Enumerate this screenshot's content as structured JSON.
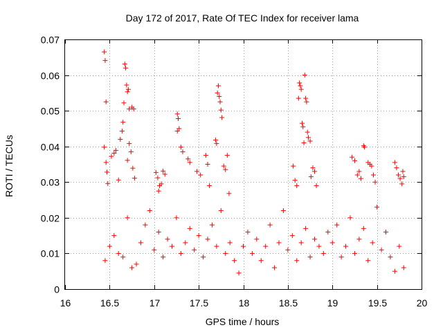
{
  "chart_data": {
    "type": "scatter",
    "title": "Day 172 of 2017, Rate Of TEC Index for receiver lama",
    "xlabel": "GPS time / hours",
    "ylabel": "ROTI / TECUs",
    "xlim": [
      16,
      20
    ],
    "ylim": [
      0,
      0.07
    ],
    "xticks": [
      "16",
      "16.5",
      "17",
      "17.5",
      "18",
      "18.5",
      "19",
      "19.5",
      "20"
    ],
    "yticks": [
      "0",
      "0.01",
      "0.02",
      "0.03",
      "0.04",
      "0.05",
      "0.06",
      "0.07"
    ],
    "grid": true,
    "marker": "+",
    "color": "#ff0000",
    "series": [
      {
        "name": "ROTI",
        "points": [
          [
            16.44,
            0.0665
          ],
          [
            16.45,
            0.0641
          ],
          [
            16.46,
            0.0525
          ],
          [
            16.44,
            0.0398
          ],
          [
            16.46,
            0.0355
          ],
          [
            16.47,
            0.0328
          ],
          [
            16.48,
            0.0296
          ],
          [
            16.52,
            0.0372
          ],
          [
            16.55,
            0.0381
          ],
          [
            16.57,
            0.0389
          ],
          [
            16.6,
            0.0306
          ],
          [
            16.62,
            0.042
          ],
          [
            16.64,
            0.0443
          ],
          [
            16.65,
            0.0468
          ],
          [
            16.67,
            0.0631
          ],
          [
            16.68,
            0.062
          ],
          [
            16.69,
            0.0572
          ],
          [
            16.7,
            0.0553
          ],
          [
            16.71,
            0.056
          ],
          [
            16.66,
            0.0522
          ],
          [
            16.72,
            0.0505
          ],
          [
            16.75,
            0.051
          ],
          [
            16.77,
            0.0505
          ],
          [
            16.72,
            0.0408
          ],
          [
            16.74,
            0.0385
          ],
          [
            16.7,
            0.0361
          ],
          [
            16.76,
            0.0339
          ],
          [
            16.78,
            0.0311
          ],
          [
            17.02,
            0.0327
          ],
          [
            17.04,
            0.0312
          ],
          [
            17.06,
            0.029
          ],
          [
            17.08,
            0.0295
          ],
          [
            17.1,
            0.0331
          ],
          [
            17.12,
            0.0322
          ],
          [
            17.05,
            0.0275
          ],
          [
            17.26,
            0.0491
          ],
          [
            17.27,
            0.0478
          ],
          [
            17.28,
            0.045
          ],
          [
            17.26,
            0.0443
          ],
          [
            17.3,
            0.0398
          ],
          [
            17.32,
            0.0385
          ],
          [
            17.38,
            0.0365
          ],
          [
            17.4,
            0.0355
          ],
          [
            17.48,
            0.033
          ],
          [
            17.52,
            0.032
          ],
          [
            17.58,
            0.0375
          ],
          [
            17.6,
            0.035
          ],
          [
            17.62,
            0.029
          ],
          [
            17.69,
            0.0418
          ],
          [
            17.7,
            0.0408
          ],
          [
            17.71,
            0.055
          ],
          [
            17.72,
            0.057
          ],
          [
            17.73,
            0.054
          ],
          [
            17.74,
            0.0525
          ],
          [
            17.75,
            0.0502
          ],
          [
            17.76,
            0.0481
          ],
          [
            17.78,
            0.0345
          ],
          [
            17.8,
            0.0335
          ],
          [
            17.82,
            0.0375
          ],
          [
            17.84,
            0.0268
          ],
          [
            18.56,
            0.0345
          ],
          [
            18.58,
            0.0305
          ],
          [
            18.62,
            0.0535
          ],
          [
            18.63,
            0.0578
          ],
          [
            18.64,
            0.057
          ],
          [
            18.65,
            0.056
          ],
          [
            18.66,
            0.0465
          ],
          [
            18.67,
            0.0455
          ],
          [
            18.68,
            0.041
          ],
          [
            18.69,
            0.06
          ],
          [
            18.7,
            0.0535
          ],
          [
            18.71,
            0.0525
          ],
          [
            18.72,
            0.044
          ],
          [
            18.73,
            0.0425
          ],
          [
            18.75,
            0.0415
          ],
          [
            18.78,
            0.034
          ],
          [
            18.8,
            0.033
          ],
          [
            18.82,
            0.029
          ],
          [
            18.76,
            0.0315
          ],
          [
            18.6,
            0.029
          ],
          [
            19.22,
            0.037
          ],
          [
            19.25,
            0.036
          ],
          [
            19.28,
            0.032
          ],
          [
            19.3,
            0.033
          ],
          [
            19.32,
            0.031
          ],
          [
            19.35,
            0.0402
          ],
          [
            19.36,
            0.0398
          ],
          [
            19.4,
            0.0355
          ],
          [
            19.42,
            0.035
          ],
          [
            19.44,
            0.0345
          ],
          [
            19.46,
            0.032
          ],
          [
            19.48,
            0.03
          ],
          [
            19.7,
            0.0355
          ],
          [
            19.72,
            0.034
          ],
          [
            19.74,
            0.032
          ],
          [
            19.76,
            0.031
          ],
          [
            19.78,
            0.0295
          ],
          [
            19.79,
            0.033
          ],
          [
            19.8,
            0.0315
          ],
          [
            16.45,
            0.008
          ],
          [
            16.5,
            0.012
          ],
          [
            16.55,
            0.015
          ],
          [
            16.6,
            0.01
          ],
          [
            16.65,
            0.009
          ],
          [
            16.7,
            0.02
          ],
          [
            16.75,
            0.006
          ],
          [
            16.8,
            0.007
          ],
          [
            16.85,
            0.013
          ],
          [
            16.9,
            0.018
          ],
          [
            16.95,
            0.022
          ],
          [
            17.0,
            0.011
          ],
          [
            17.05,
            0.016
          ],
          [
            17.1,
            0.009
          ],
          [
            17.15,
            0.014
          ],
          [
            17.2,
            0.012
          ],
          [
            17.25,
            0.02
          ],
          [
            17.3,
            0.01
          ],
          [
            17.35,
            0.013
          ],
          [
            17.4,
            0.017
          ],
          [
            17.45,
            0.011
          ],
          [
            17.5,
            0.015
          ],
          [
            17.55,
            0.009
          ],
          [
            17.6,
            0.014
          ],
          [
            17.65,
            0.018
          ],
          [
            17.7,
            0.012
          ],
          [
            17.75,
            0.022
          ],
          [
            17.8,
            0.01
          ],
          [
            17.85,
            0.013
          ],
          [
            17.9,
            0.008
          ],
          [
            17.95,
            0.0045
          ],
          [
            18.0,
            0.012
          ],
          [
            18.05,
            0.016
          ],
          [
            18.1,
            0.01
          ],
          [
            18.15,
            0.014
          ],
          [
            18.2,
            0.008
          ],
          [
            18.25,
            0.012
          ],
          [
            18.3,
            0.018
          ],
          [
            18.35,
            0.006
          ],
          [
            18.4,
            0.013
          ],
          [
            18.45,
            0.022
          ],
          [
            18.5,
            0.011
          ],
          [
            18.55,
            0.015
          ],
          [
            18.6,
            0.008
          ],
          [
            18.65,
            0.013
          ],
          [
            18.7,
            0.017
          ],
          [
            18.75,
            0.009
          ],
          [
            18.8,
            0.014
          ],
          [
            18.85,
            0.012
          ],
          [
            18.9,
            0.01
          ],
          [
            18.95,
            0.016
          ],
          [
            19.0,
            0.013
          ],
          [
            19.05,
            0.018
          ],
          [
            19.1,
            0.009
          ],
          [
            19.15,
            0.012
          ],
          [
            19.2,
            0.02
          ],
          [
            19.25,
            0.01
          ],
          [
            19.3,
            0.014
          ],
          [
            19.35,
            0.017
          ],
          [
            19.4,
            0.008
          ],
          [
            19.45,
            0.013
          ],
          [
            19.5,
            0.023
          ],
          [
            19.55,
            0.011
          ],
          [
            19.6,
            0.016
          ],
          [
            19.65,
            0.009
          ],
          [
            19.7,
            0.005
          ],
          [
            19.75,
            0.012
          ],
          [
            19.8,
            0.006
          ]
        ]
      }
    ]
  }
}
